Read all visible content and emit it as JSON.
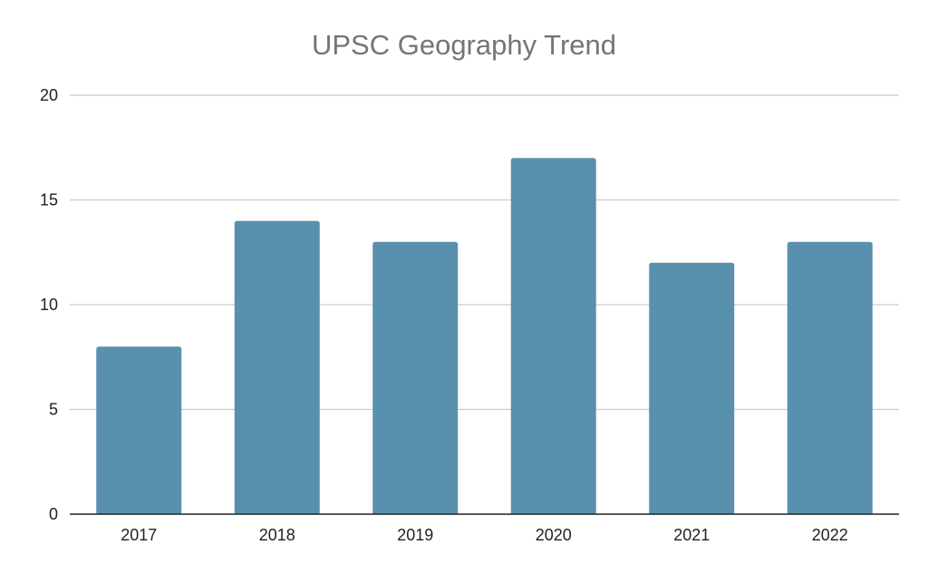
{
  "chart_data": {
    "type": "bar",
    "title": "UPSC Geography Trend",
    "categories": [
      "2017",
      "2018",
      "2019",
      "2020",
      "2021",
      "2022"
    ],
    "values": [
      8,
      14,
      13,
      17,
      12,
      13
    ],
    "xlabel": "",
    "ylabel": "",
    "ylim": [
      0,
      20
    ],
    "yticks": [
      0,
      5,
      10,
      15,
      20
    ],
    "grid": true,
    "legend": "none",
    "colors": {
      "bar": "#5990ad",
      "grid": "#cccccc",
      "axis": "#222222",
      "title": "#757575"
    }
  }
}
